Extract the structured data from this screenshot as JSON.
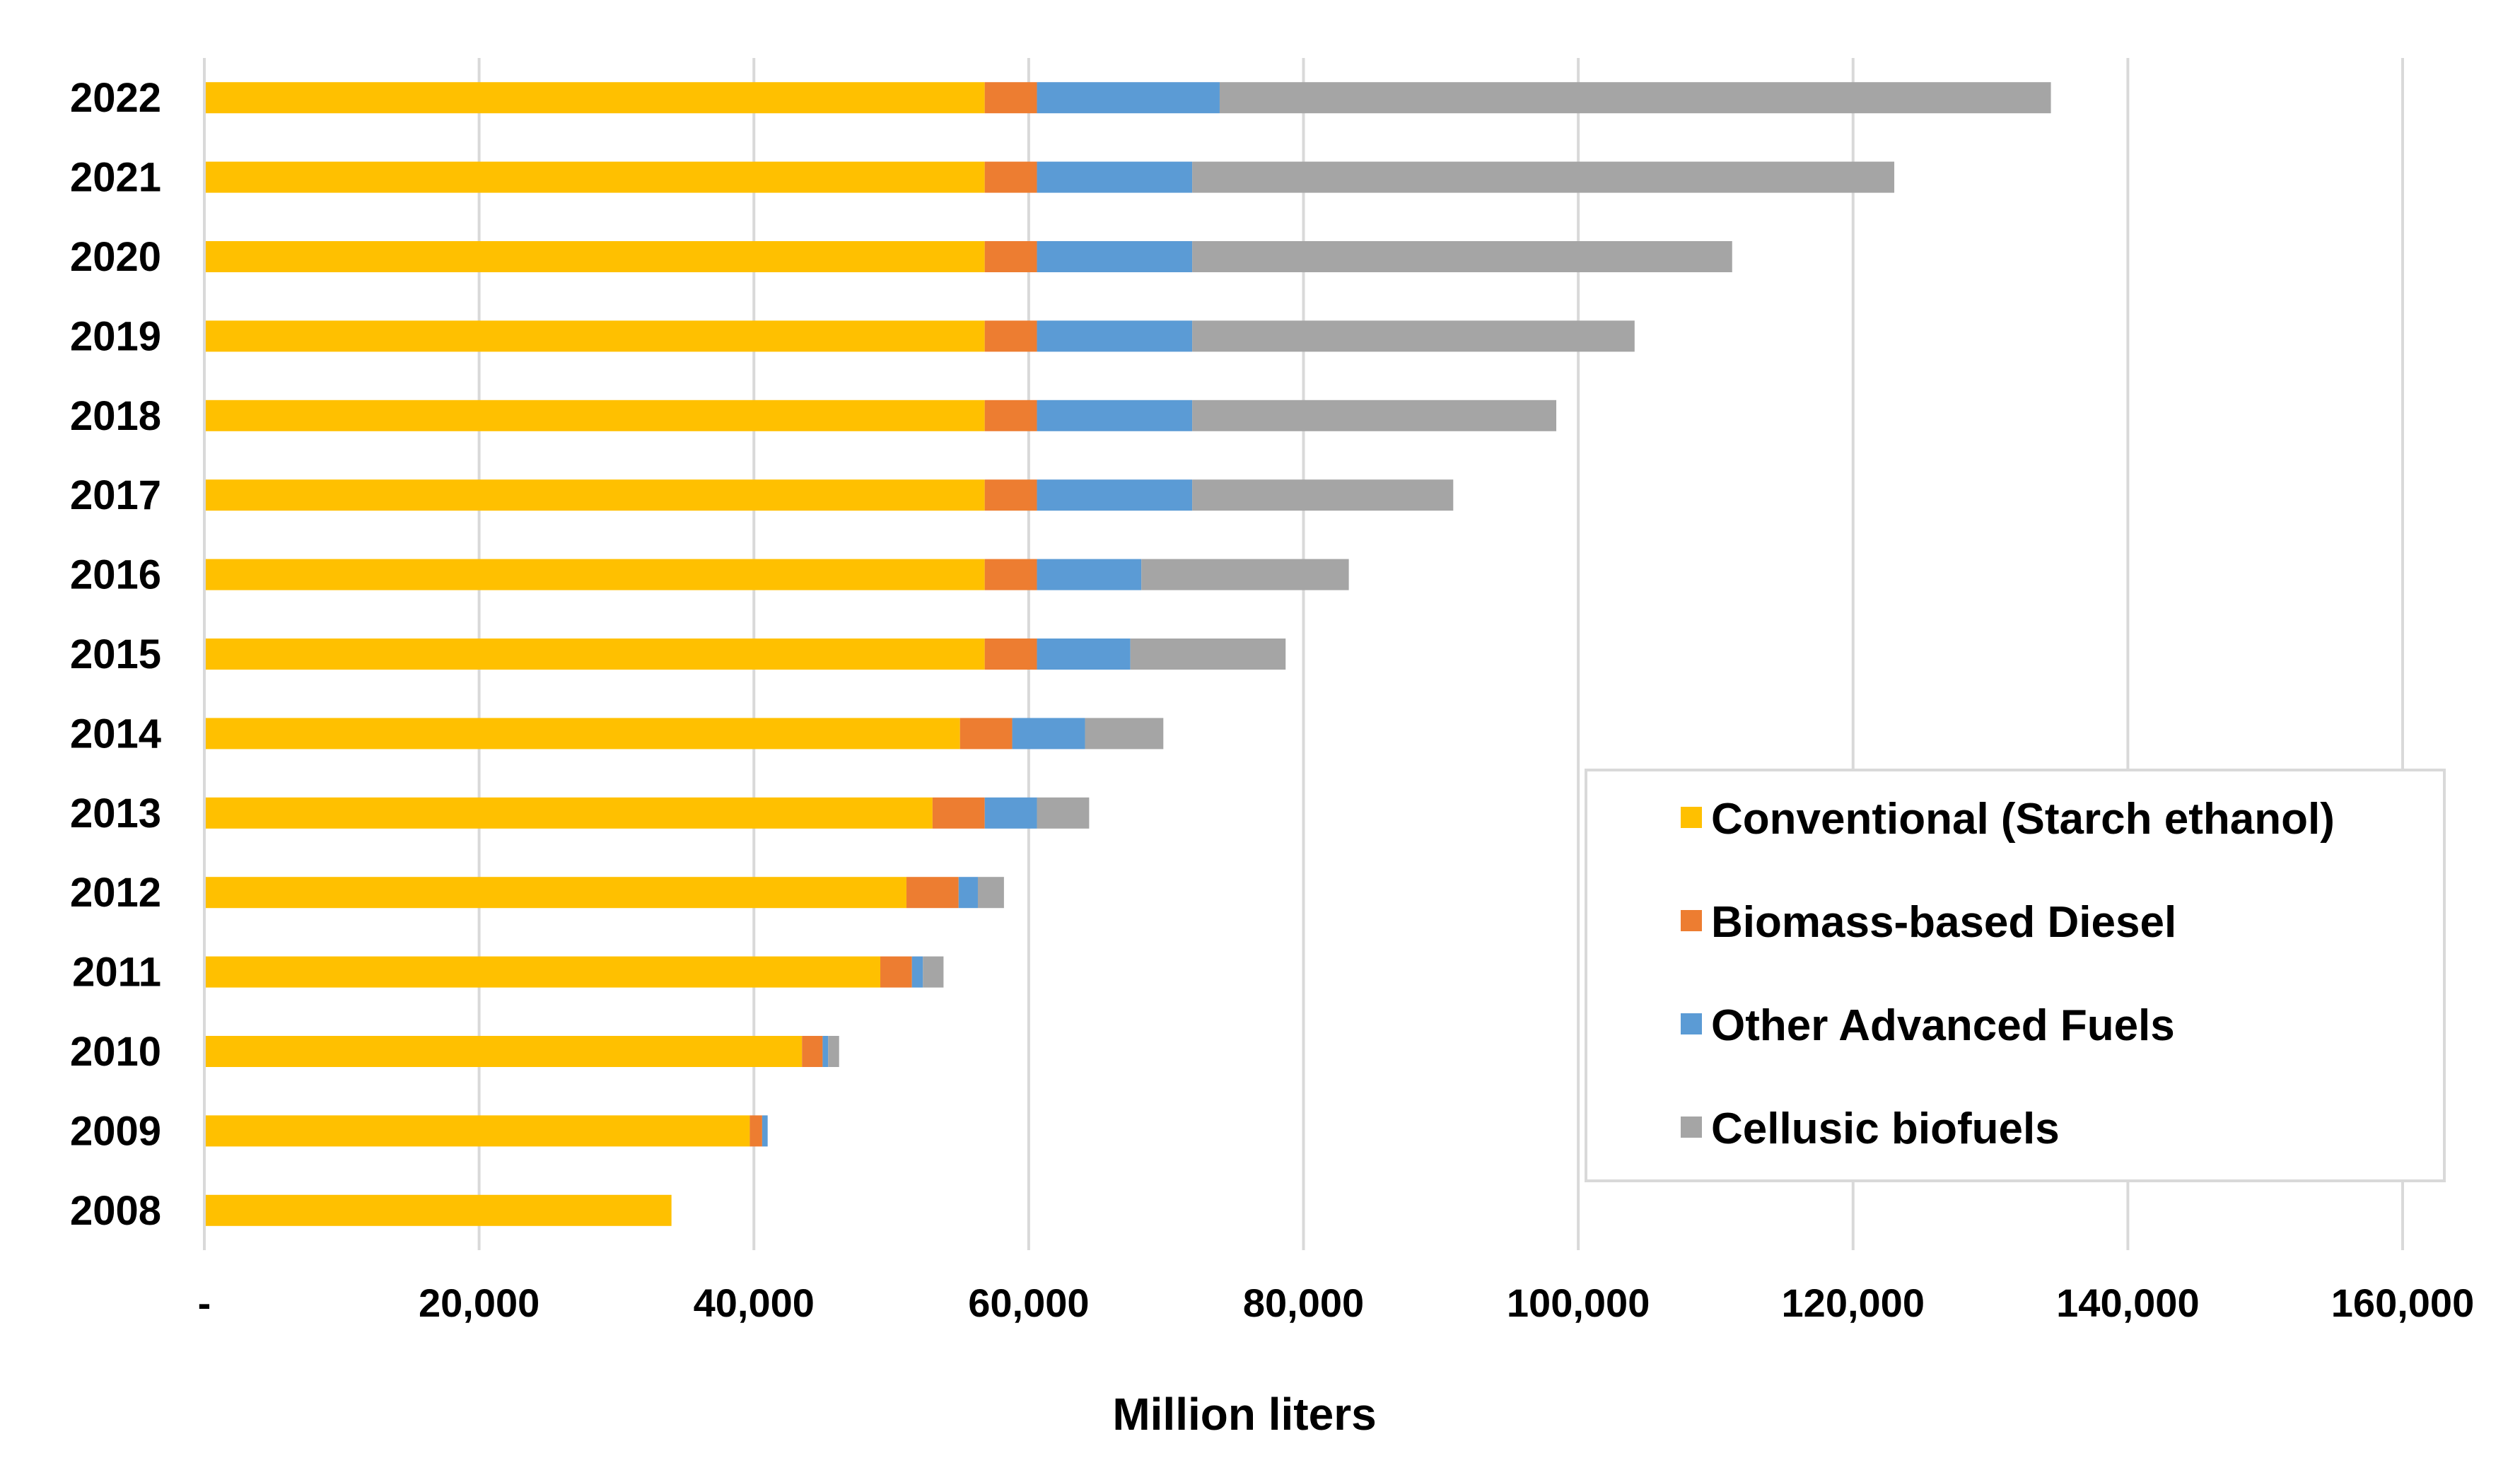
{
  "chart_data": {
    "type": "bar",
    "orientation": "horizontal",
    "stacked": true,
    "title": "",
    "xlabel": "Million liters",
    "ylabel": "",
    "xlim": [
      0,
      160000
    ],
    "grid": true,
    "legend_position": "bottom-right",
    "x_ticks": [
      0,
      20000,
      40000,
      60000,
      80000,
      100000,
      120000,
      140000,
      160000
    ],
    "x_tick_labels": [
      "-",
      "20,000",
      "40,000",
      "60,000",
      "80,000",
      "100,000",
      "120,000",
      "140,000",
      "160,000"
    ],
    "categories": [
      "2022",
      "2021",
      "2020",
      "2019",
      "2018",
      "2017",
      "2016",
      "2015",
      "2014",
      "2013",
      "2012",
      "2011",
      "2010",
      "2009",
      "2008"
    ],
    "series": [
      {
        "name": "Conventional (Starch ethanol)",
        "color": "#FFC000",
        "values": [
          56800,
          56800,
          56800,
          56800,
          56800,
          56800,
          56800,
          56800,
          55000,
          53000,
          51100,
          49200,
          43500,
          39700,
          34000
        ]
      },
      {
        "name": "Biomass-based Diesel",
        "color": "#ED7D31",
        "values": [
          3800,
          3800,
          3800,
          3800,
          3800,
          3800,
          3800,
          3800,
          3800,
          3800,
          3800,
          2300,
          1500,
          900,
          0
        ]
      },
      {
        "name": "Other Advanced Fuels",
        "color": "#5B9BD5",
        "values": [
          13300,
          11300,
          11300,
          11300,
          11300,
          11300,
          7600,
          6800,
          5300,
          3800,
          1400,
          800,
          400,
          400,
          0
        ]
      },
      {
        "name": "Cellusic biofuels",
        "color": "#A5A5A5",
        "values": [
          60500,
          51100,
          39300,
          32200,
          26500,
          19000,
          15100,
          11300,
          5700,
          3800,
          1900,
          1500,
          800,
          0,
          0
        ]
      }
    ]
  }
}
